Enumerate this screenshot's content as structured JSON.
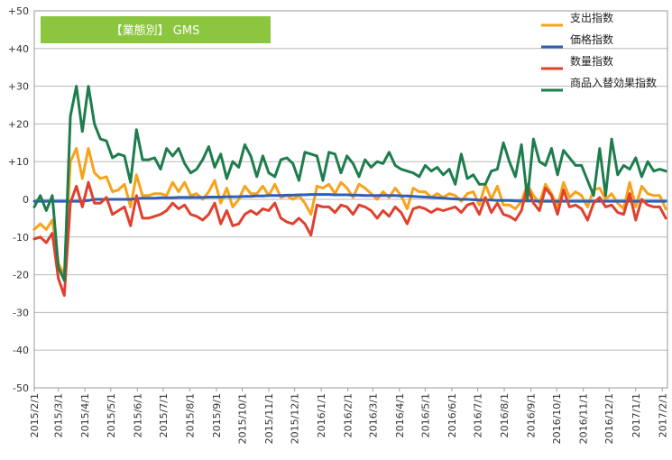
{
  "chart_data": {
    "type": "line",
    "title": "【業態別】 GMS",
    "xlabel": "",
    "ylabel": "",
    "ylim": [
      -50,
      50
    ],
    "yticks": [
      "+50",
      "+40",
      "+30",
      "+20",
      "+10",
      "0",
      "-10",
      "-20",
      "-30",
      "-40",
      "-50"
    ],
    "grid": true,
    "legend_position": "top-right",
    "x_tick_labels": [
      "2015/2/1",
      "2015/3/1",
      "2015/4/1",
      "2015/5/1",
      "2015/6/1",
      "2015/7/1",
      "2015/8/1",
      "2015/9/1",
      "2015/10/1",
      "2015/11/1",
      "2015/12/1",
      "2016/1/1",
      "2016/2/1",
      "2016/3/1",
      "2016/4/1",
      "2016/5/1",
      "2016/6/1",
      "2016/7/1",
      "2016/8/1",
      "2016/9/1",
      "2016/10/1",
      "2016/11/1",
      "2016/12/1",
      "2017/1/1",
      "2017/2/1"
    ],
    "x_start": "2015-02-01",
    "x_end": "2017-02-07",
    "x": [
      "2015-02-01",
      "2015-02-08",
      "2015-02-15",
      "2015-02-22",
      "2015-03-01",
      "2015-03-08",
      "2015-03-15",
      "2015-03-22",
      "2015-03-29",
      "2015-04-05",
      "2015-04-12",
      "2015-04-19",
      "2015-04-26",
      "2015-05-03",
      "2015-05-10",
      "2015-05-17",
      "2015-05-24",
      "2015-05-31",
      "2015-06-07",
      "2015-06-14",
      "2015-06-21",
      "2015-06-28",
      "2015-07-05",
      "2015-07-12",
      "2015-07-19",
      "2015-07-26",
      "2015-08-02",
      "2015-08-09",
      "2015-08-16",
      "2015-08-23",
      "2015-08-30",
      "2015-09-06",
      "2015-09-13",
      "2015-09-20",
      "2015-09-27",
      "2015-10-04",
      "2015-10-11",
      "2015-10-18",
      "2015-10-25",
      "2015-11-01",
      "2015-11-08",
      "2015-11-15",
      "2015-11-22",
      "2015-11-29",
      "2015-12-06",
      "2015-12-13",
      "2015-12-20",
      "2015-12-27",
      "2016-01-03",
      "2016-01-10",
      "2016-01-17",
      "2016-01-24",
      "2016-01-31",
      "2016-02-07",
      "2016-02-14",
      "2016-02-21",
      "2016-02-28",
      "2016-03-06",
      "2016-03-13",
      "2016-03-20",
      "2016-03-27",
      "2016-04-03",
      "2016-04-10",
      "2016-04-17",
      "2016-04-24",
      "2016-05-01",
      "2016-05-08",
      "2016-05-15",
      "2016-05-22",
      "2016-05-29",
      "2016-06-05",
      "2016-06-12",
      "2016-06-19",
      "2016-06-26",
      "2016-07-03",
      "2016-07-10",
      "2016-07-17",
      "2016-07-24",
      "2016-07-31",
      "2016-08-07",
      "2016-08-14",
      "2016-08-21",
      "2016-08-28",
      "2016-09-04",
      "2016-09-11",
      "2016-09-18",
      "2016-09-25",
      "2016-10-02",
      "2016-10-09",
      "2016-10-16",
      "2016-10-23",
      "2016-10-30",
      "2016-11-06",
      "2016-11-13",
      "2016-11-20",
      "2016-11-27",
      "2016-12-04",
      "2016-12-11",
      "2016-12-18",
      "2016-12-25",
      "2017-01-01",
      "2017-01-08",
      "2017-01-15",
      "2017-01-22",
      "2017-01-29",
      "2017-02-05"
    ],
    "series": [
      {
        "name": "支出指数",
        "color": "#f7a21b",
        "values": [
          -8.0,
          -6.5,
          -8.0,
          -5.5,
          -17.0,
          -20.0,
          10.0,
          13.5,
          5.5,
          13.5,
          7.0,
          5.5,
          6.0,
          2.0,
          2.5,
          4.0,
          -2.0,
          6.5,
          1.0,
          1.0,
          1.5,
          1.5,
          1.0,
          4.5,
          2.0,
          4.5,
          1.0,
          1.5,
          0.0,
          2.0,
          5.0,
          -1.0,
          3.0,
          -2.0,
          0.0,
          3.5,
          1.5,
          1.5,
          3.5,
          1.0,
          4.0,
          0.5,
          1.0,
          0.0,
          1.0,
          -1.0,
          -4.0,
          3.5,
          3.0,
          4.0,
          1.5,
          4.5,
          3.0,
          0.5,
          4.0,
          3.0,
          1.5,
          0.0,
          2.0,
          0.5,
          3.0,
          1.0,
          -2.5,
          3.0,
          2.0,
          2.0,
          0.5,
          1.5,
          0.5,
          1.5,
          1.0,
          -0.5,
          1.5,
          2.0,
          -1.5,
          4.0,
          0.0,
          3.5,
          -1.5,
          -1.5,
          -2.5,
          -0.5,
          4.0,
          1.0,
          -1.0,
          4.0,
          1.5,
          -2.0,
          4.5,
          0.5,
          2.0,
          1.0,
          -2.0,
          2.5,
          3.0,
          0.0,
          1.5,
          -1.0,
          -2.5,
          4.5,
          -2.0,
          3.5,
          1.5,
          1.0,
          1.0,
          -2.5
        ]
      },
      {
        "name": "価格指数",
        "color": "#2e5fb5",
        "values": [
          -0.5,
          -0.5,
          -0.5,
          -0.5,
          -0.5,
          -0.5,
          -0.5,
          -0.5,
          -0.5,
          -0.3,
          0.0,
          0.0,
          0.0,
          0.0,
          0.0,
          0.0,
          0.0,
          0.2,
          0.3,
          0.3,
          0.3,
          0.4,
          0.4,
          0.4,
          0.5,
          0.5,
          0.5,
          0.5,
          0.5,
          0.6,
          0.6,
          0.6,
          0.7,
          0.7,
          0.7,
          0.8,
          0.8,
          0.9,
          0.9,
          1.0,
          1.0,
          1.0,
          1.1,
          1.1,
          1.2,
          1.2,
          1.3,
          1.3,
          1.3,
          1.3,
          1.2,
          1.2,
          1.2,
          1.1,
          1.1,
          1.0,
          1.0,
          1.0,
          1.0,
          1.0,
          1.0,
          0.9,
          0.9,
          0.8,
          0.7,
          0.6,
          0.5,
          0.4,
          0.3,
          0.2,
          0.1,
          0.0,
          0.0,
          -0.1,
          -0.2,
          -0.2,
          -0.2,
          -0.3,
          -0.3,
          -0.3,
          -0.4,
          -0.4,
          -0.4,
          -0.4,
          -0.5,
          -0.5,
          -0.5,
          -0.5,
          -0.5,
          -0.5,
          -0.5,
          -0.5,
          -0.5,
          -0.5,
          -0.5,
          -0.5,
          -0.5,
          -0.5,
          -0.5,
          -0.5,
          -0.5,
          -0.5,
          -0.5,
          -0.5,
          -0.5,
          -0.5
        ]
      },
      {
        "name": "数量指数",
        "color": "#e0402e",
        "values": [
          -10.5,
          -10.0,
          -11.5,
          -9.0,
          -21.0,
          -25.5,
          -1.0,
          3.5,
          -2.0,
          4.5,
          -1.0,
          -1.0,
          0.5,
          -4.0,
          -3.0,
          -2.0,
          -7.0,
          1.0,
          -5.0,
          -5.0,
          -4.5,
          -4.0,
          -3.0,
          -1.0,
          -2.5,
          -1.5,
          -4.0,
          -4.5,
          -5.5,
          -4.0,
          -1.0,
          -6.5,
          -3.0,
          -7.0,
          -6.5,
          -4.0,
          -3.0,
          -4.0,
          -2.5,
          -3.0,
          -1.0,
          -5.0,
          -6.0,
          -6.5,
          -5.0,
          -6.5,
          -9.5,
          -1.5,
          -2.0,
          -2.0,
          -3.5,
          -1.5,
          -2.0,
          -4.0,
          -1.5,
          -2.0,
          -3.0,
          -5.0,
          -3.0,
          -4.5,
          -2.0,
          -3.5,
          -6.5,
          -2.5,
          -2.0,
          -2.5,
          -3.5,
          -2.5,
          -3.0,
          -2.5,
          -2.0,
          -3.5,
          -1.5,
          -1.0,
          -4.0,
          0.5,
          -3.5,
          -1.0,
          -4.0,
          -4.5,
          -5.5,
          -3.0,
          3.5,
          -1.0,
          -3.0,
          3.0,
          1.0,
          -4.0,
          2.5,
          -2.0,
          -1.5,
          -2.5,
          -5.5,
          -1.0,
          0.5,
          -2.0,
          -1.5,
          -3.5,
          -4.0,
          1.5,
          -5.5,
          0.0,
          -1.5,
          -2.0,
          -2.0,
          -5.0
        ]
      },
      {
        "name": "商品入替効果指数",
        "color": "#1e7d4c",
        "values": [
          -2.0,
          1.0,
          -3.0,
          1.0,
          -18.0,
          -21.5,
          22.0,
          30.0,
          18.0,
          30.0,
          20.0,
          16.0,
          15.5,
          11.0,
          12.0,
          11.5,
          4.5,
          18.5,
          10.5,
          10.5,
          11.0,
          8.0,
          13.5,
          11.5,
          13.5,
          9.5,
          7.0,
          8.0,
          10.5,
          14.0,
          8.5,
          12.0,
          5.5,
          10.0,
          8.5,
          14.5,
          11.5,
          6.0,
          11.5,
          7.0,
          6.0,
          10.5,
          11.0,
          9.5,
          5.0,
          12.5,
          12.0,
          11.5,
          5.0,
          12.5,
          12.0,
          7.0,
          11.5,
          9.5,
          6.0,
          10.5,
          8.5,
          10.0,
          9.5,
          12.5,
          9.0,
          8.0,
          7.5,
          7.0,
          6.0,
          9.0,
          7.5,
          8.5,
          6.5,
          8.0,
          4.0,
          12.0,
          5.5,
          6.5,
          4.0,
          4.0,
          7.5,
          8.0,
          15.0,
          10.0,
          6.0,
          14.5,
          0.0,
          16.0,
          10.0,
          9.0,
          13.5,
          6.5,
          13.0,
          11.0,
          9.0,
          9.0,
          5.0,
          1.0,
          13.5,
          1.0,
          16.0,
          6.5,
          9.0,
          8.0,
          11.0,
          6.0,
          10.0,
          7.5,
          8.0,
          7.5
        ]
      }
    ]
  }
}
